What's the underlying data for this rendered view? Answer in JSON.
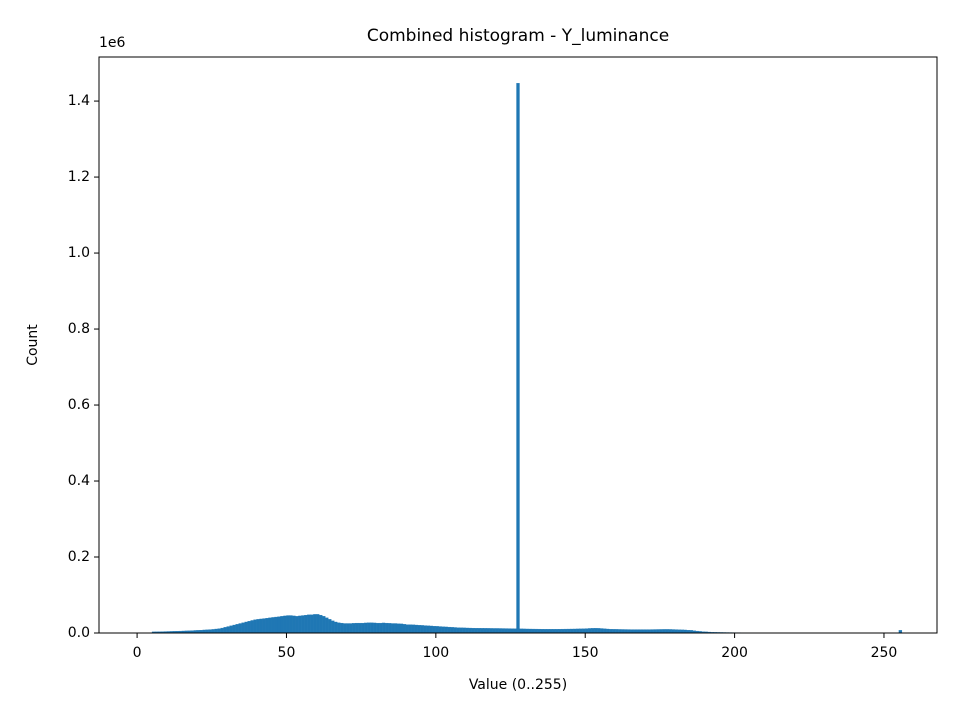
{
  "chart_data": {
    "type": "histogram",
    "title": "Combined histogram - Y_luminance",
    "x_label": "Value (0..255)",
    "y_label": "Count",
    "y_offset_text": "1e6",
    "color": "#1f77b4",
    "bins": [
      0,
      1,
      2,
      3,
      4,
      5,
      6,
      7,
      8,
      9,
      10,
      11,
      12,
      13,
      14,
      15,
      16,
      17,
      18,
      19,
      20,
      21,
      22,
      23,
      24,
      25,
      26,
      27,
      28,
      29,
      30,
      31,
      32,
      33,
      34,
      35,
      36,
      37,
      38,
      39,
      40,
      41,
      42,
      43,
      44,
      45,
      46,
      47,
      48,
      49,
      50,
      51,
      52,
      53,
      54,
      55,
      56,
      57,
      58,
      59,
      60,
      61,
      62,
      63,
      64,
      65,
      66,
      67,
      68,
      69,
      70,
      71,
      72,
      73,
      74,
      75,
      76,
      77,
      78,
      79,
      80,
      81,
      82,
      83,
      84,
      85,
      86,
      87,
      88,
      89,
      90,
      91,
      92,
      93,
      94,
      95,
      96,
      97,
      98,
      99,
      100,
      101,
      102,
      103,
      104,
      105,
      106,
      107,
      108,
      109,
      110,
      111,
      112,
      113,
      114,
      115,
      116,
      117,
      118,
      119,
      120,
      121,
      122,
      123,
      124,
      125,
      126,
      127,
      128,
      129,
      130,
      131,
      132,
      133,
      134,
      135,
      136,
      137,
      138,
      139,
      140,
      141,
      142,
      143,
      144,
      145,
      146,
      147,
      148,
      149,
      150,
      151,
      152,
      153,
      154,
      155,
      156,
      157,
      158,
      159,
      160,
      161,
      162,
      163,
      164,
      165,
      166,
      167,
      168,
      169,
      170,
      171,
      172,
      173,
      174,
      175,
      176,
      177,
      178,
      179,
      180,
      181,
      182,
      183,
      184,
      185,
      186,
      187,
      188,
      189,
      190,
      191,
      192,
      193,
      194,
      195,
      196,
      197,
      198,
      199,
      200,
      201,
      202,
      203,
      204,
      205,
      206,
      207,
      208,
      209,
      210,
      211,
      212,
      213,
      214,
      215,
      216,
      217,
      218,
      219,
      220,
      221,
      222,
      223,
      224,
      225,
      226,
      227,
      228,
      229,
      230,
      231,
      232,
      233,
      234,
      235,
      236,
      237,
      238,
      239,
      240,
      241,
      242,
      243,
      244,
      245,
      246,
      247,
      248,
      249,
      250,
      251,
      252,
      253,
      254,
      255,
      256
    ],
    "values": [
      0,
      0,
      0,
      0,
      0,
      3000,
      3200,
      3400,
      3600,
      3800,
      4000,
      4200,
      4500,
      4800,
      5000,
      5300,
      5600,
      6000,
      6300,
      6700,
      7000,
      7500,
      8000,
      8500,
      9000,
      9500,
      10500,
      11500,
      13000,
      15000,
      17000,
      19000,
      21000,
      23000,
      25000,
      27000,
      29000,
      31000,
      33000,
      35000,
      36000,
      37000,
      38000,
      39000,
      40000,
      41000,
      42000,
      43000,
      44000,
      45000,
      46000,
      46000,
      45000,
      44000,
      45000,
      46000,
      47000,
      48000,
      48000,
      49000,
      49000,
      47000,
      44000,
      40000,
      36000,
      32000,
      29000,
      27000,
      26000,
      25000,
      25000,
      25000,
      25500,
      26000,
      26000,
      26000,
      26500,
      27000,
      27000,
      26500,
      26000,
      26000,
      26500,
      26000,
      25500,
      25000,
      25000,
      24500,
      24000,
      23000,
      22000,
      22000,
      21500,
      21000,
      20500,
      20000,
      19500,
      19000,
      18500,
      18000,
      17500,
      17000,
      16500,
      16000,
      15500,
      15000,
      14500,
      14000,
      13800,
      13500,
      13200,
      13000,
      12800,
      12600,
      12500,
      12400,
      12300,
      12200,
      12100,
      12000,
      12000,
      11900,
      11800,
      11700,
      11600,
      11500,
      11400,
      1447000,
      11000,
      10800,
      10600,
      10500,
      10400,
      10300,
      10200,
      10100,
      10000,
      10000,
      10000,
      10000,
      10000,
      10100,
      10200,
      10300,
      10400,
      10500,
      10600,
      10800,
      11000,
      11300,
      11600,
      12000,
      12300,
      12500,
      12200,
      11800,
      11200,
      10500,
      10000,
      9800,
      9600,
      9400,
      9300,
      9200,
      9100,
      9000,
      9000,
      9000,
      9000,
      9000,
      9000,
      9000,
      9100,
      9200,
      9300,
      9400,
      9500,
      9500,
      9400,
      9200,
      9000,
      8700,
      8300,
      8000,
      7500,
      7000,
      6000,
      5000,
      4200,
      3500,
      3000,
      2500,
      2000,
      1800,
      1600,
      1500,
      1400,
      1300,
      1200,
      1100,
      1000,
      1000,
      900,
      900,
      850,
      800,
      800,
      750,
      700,
      700,
      650,
      650,
      600,
      600,
      550,
      550,
      500,
      500,
      500,
      450,
      450,
      450,
      400,
      400,
      400,
      400,
      350,
      350,
      350,
      300,
      300,
      300,
      300,
      300,
      250,
      250,
      250,
      250,
      250,
      200,
      200,
      200,
      200,
      200,
      200,
      200,
      200,
      200,
      200,
      200,
      200,
      200,
      200,
      200,
      200,
      7000
    ],
    "xlim": [
      -12.75,
      267.75
    ],
    "xticks": [
      0,
      50,
      100,
      150,
      200,
      250
    ],
    "ylim": [
      0,
      1516000
    ],
    "yticks": [
      {
        "value": 0,
        "label": "0.0"
      },
      {
        "value": 200000,
        "label": "0.2"
      },
      {
        "value": 400000,
        "label": "0.4"
      },
      {
        "value": 600000,
        "label": "0.6"
      },
      {
        "value": 800000,
        "label": "0.8"
      },
      {
        "value": 1000000,
        "label": "1.0"
      },
      {
        "value": 1200000,
        "label": "1.2"
      },
      {
        "value": 1400000,
        "label": "1.4"
      }
    ]
  }
}
